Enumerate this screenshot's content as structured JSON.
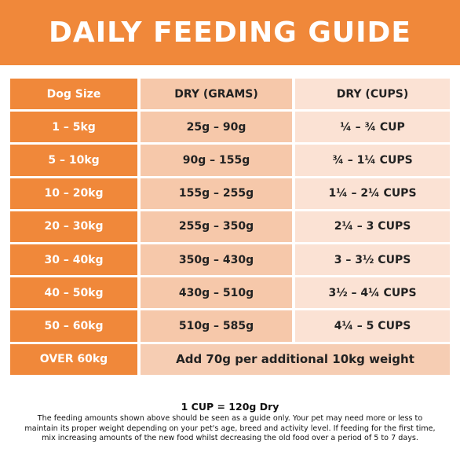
{
  "banner": {
    "title": "DAILY FEEDING GUIDE"
  },
  "table": {
    "headers": [
      "Dog Size",
      "DRY (GRAMS)",
      "DRY (CUPS)"
    ],
    "rows": [
      {
        "size": "1 – 5kg",
        "grams": "25g – 90g",
        "cups": "¼ – ¾ CUP"
      },
      {
        "size": "5 – 10kg",
        "grams": "90g – 155g",
        "cups": "¾ – 1¼ CUPS"
      },
      {
        "size": "10 – 20kg",
        "grams": "155g – 255g",
        "cups": "1¼ – 2¼ CUPS"
      },
      {
        "size": "20 – 30kg",
        "grams": "255g – 350g",
        "cups": "2¼ – 3 CUPS"
      },
      {
        "size": "30 – 40kg",
        "grams": "350g – 430g",
        "cups": "3 – 3½ CUPS"
      },
      {
        "size": "40 – 50kg",
        "grams": "430g – 510g",
        "cups": "3½ – 4¼ CUPS"
      },
      {
        "size": "50 – 60kg",
        "grams": "510g – 585g",
        "cups": "4¼ – 5 CUPS"
      }
    ],
    "last_row": {
      "size": "OVER 60kg",
      "note": "Add 70g per additional 10kg weight"
    }
  },
  "notes": {
    "cup_equivalence": "1 CUP = 120g Dry",
    "lines": [
      "The feeding amounts shown above should be seen as a guide only. Your pet may need more or less to",
      "maintain its proper weight depending on your pet's age, breed and activity level. If feeding for the first time,",
      "mix increasing amounts of the new food whilst decreasing the old food over a period of 5 to 7 days."
    ]
  },
  "colors": {
    "accent": "#f0883a",
    "grams_column": "#f6c8aa",
    "cups_column": "#fbe2d4"
  }
}
